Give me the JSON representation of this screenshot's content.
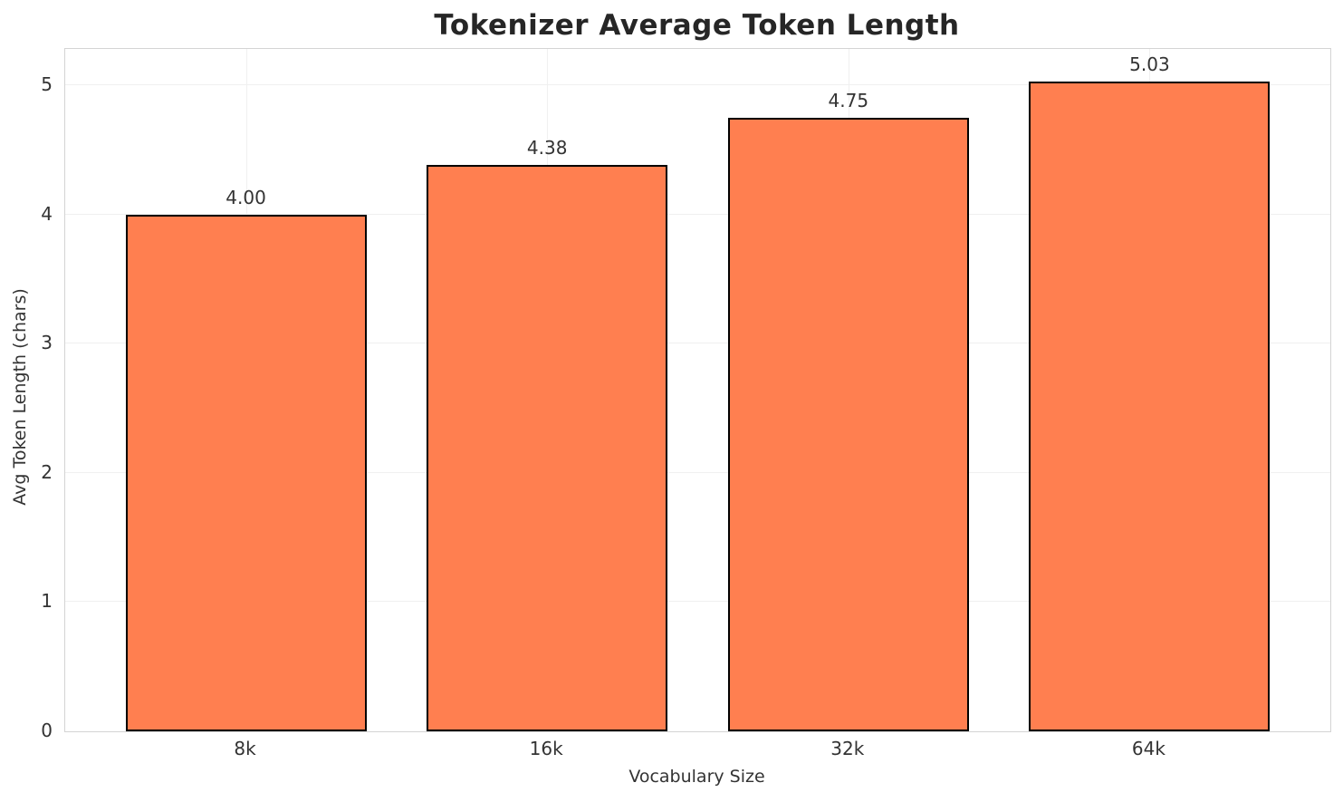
{
  "chart_data": {
    "type": "bar",
    "title": "Tokenizer Average Token Length",
    "xlabel": "Vocabulary Size",
    "ylabel": "Avg Token Length (chars)",
    "categories": [
      "8k",
      "16k",
      "32k",
      "64k"
    ],
    "values": [
      4.0,
      4.38,
      4.75,
      5.03
    ],
    "value_labels": [
      "4.00",
      "4.38",
      "4.75",
      "5.03"
    ],
    "yticks": [
      0,
      1,
      2,
      3,
      4,
      5
    ],
    "ytick_labels": [
      "0",
      "1",
      "2",
      "3",
      "4",
      "5"
    ],
    "ylim": [
      0,
      5.28
    ],
    "xlim": [
      -0.6,
      3.6
    ],
    "bar_width_units": 0.8,
    "grid": true,
    "legend": "none",
    "bar_color": "#FF7F50",
    "bar_edge_color": "#000000",
    "grid_color": "#f0f0f0",
    "spine_color": "#d4d4d4",
    "text_color": "#333333",
    "title_color": "#262626",
    "background": "#ffffff"
  }
}
